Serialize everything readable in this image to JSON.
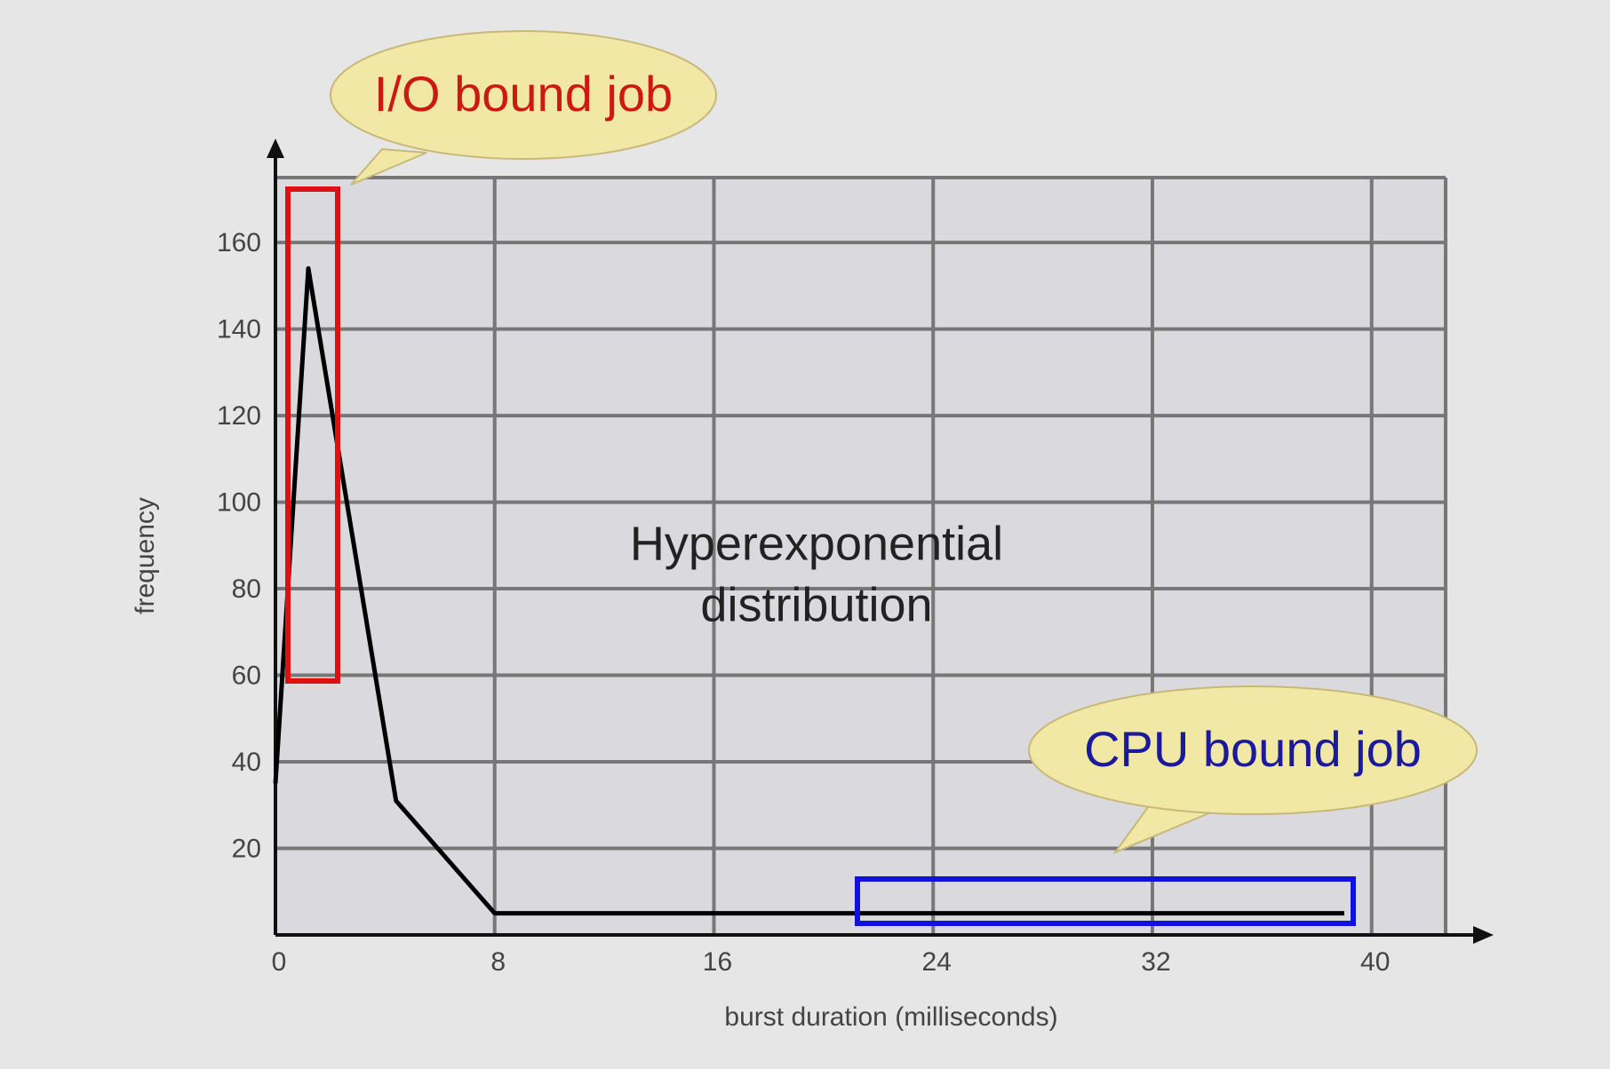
{
  "chart_data": {
    "type": "line",
    "x_label": "burst duration (milliseconds)",
    "y_label": "frequency",
    "series": [
      {
        "name": "frequency",
        "color": "#000000",
        "x": [
          0,
          1.2,
          4.4,
          8,
          39
        ],
        "values": [
          35,
          154,
          31,
          5,
          5
        ]
      }
    ],
    "xlim": [
      0,
      42.7
    ],
    "xticks": [
      0,
      8,
      16,
      24,
      32,
      40
    ],
    "ylim": [
      0,
      175
    ],
    "yticks": [
      20,
      40,
      60,
      80,
      100,
      120,
      140,
      160
    ],
    "grid": true,
    "annotations": {
      "io": "I/O bound job",
      "cpu": "CPU bound job",
      "center": [
        "Hyperexponential",
        "distribution"
      ]
    }
  }
}
